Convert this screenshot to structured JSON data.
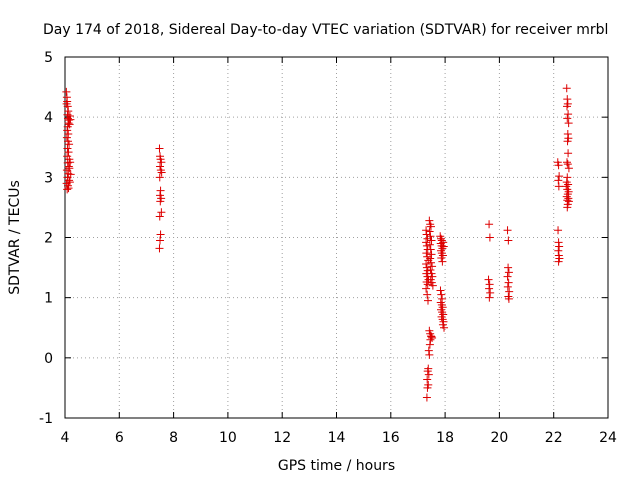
{
  "chart_data": {
    "type": "scatter",
    "title": "Day 174 of 2018, Sidereal Day-to-day VTEC variation (SDTVAR) for receiver mrbl",
    "xlabel": "GPS time / hours",
    "ylabel": "SDTVAR / TECUs",
    "xlim": [
      4,
      24
    ],
    "ylim": [
      -1,
      5
    ],
    "xticks": [
      4,
      6,
      8,
      10,
      12,
      14,
      16,
      18,
      20,
      22,
      24
    ],
    "yticks": [
      -1,
      0,
      1,
      2,
      3,
      4,
      5
    ],
    "grid": true,
    "marker": "+",
    "color": "#dd0000",
    "series": [
      {
        "name": "SDTVAR",
        "points": [
          [
            4.05,
            4.42
          ],
          [
            4.07,
            4.33
          ],
          [
            4.08,
            4.26
          ],
          [
            4.06,
            4.22
          ],
          [
            4.1,
            4.18
          ],
          [
            4.12,
            4.1
          ],
          [
            4.09,
            4.04
          ],
          [
            4.11,
            3.98
          ],
          [
            4.14,
            3.95
          ],
          [
            4.13,
            3.9
          ],
          [
            4.1,
            3.84
          ],
          [
            4.08,
            3.78
          ],
          [
            4.12,
            3.72
          ],
          [
            4.07,
            3.66
          ],
          [
            4.11,
            3.6
          ],
          [
            4.15,
            3.55
          ],
          [
            4.09,
            3.48
          ],
          [
            4.13,
            3.42
          ],
          [
            4.08,
            3.35
          ],
          [
            4.16,
            3.3
          ],
          [
            4.1,
            3.24
          ],
          [
            4.14,
            3.18
          ],
          [
            4.07,
            3.12
          ],
          [
            4.12,
            3.06
          ],
          [
            4.09,
            3.0
          ],
          [
            4.15,
            2.95
          ],
          [
            4.06,
            2.9
          ],
          [
            4.11,
            2.86
          ],
          [
            4.13,
            2.82
          ],
          [
            4.08,
            2.8
          ],
          [
            4.18,
            4.02
          ],
          [
            4.2,
            3.96
          ],
          [
            4.17,
            3.88
          ],
          [
            4.19,
            3.25
          ],
          [
            4.16,
            3.15
          ],
          [
            4.21,
            3.05
          ],
          [
            4.18,
            2.92
          ],
          [
            7.48,
            3.48
          ],
          [
            7.5,
            3.35
          ],
          [
            7.52,
            3.3
          ],
          [
            7.55,
            3.25
          ],
          [
            7.5,
            3.18
          ],
          [
            7.53,
            3.12
          ],
          [
            7.56,
            3.08
          ],
          [
            7.49,
            3.0
          ],
          [
            7.52,
            2.78
          ],
          [
            7.5,
            2.7
          ],
          [
            7.54,
            2.65
          ],
          [
            7.51,
            2.6
          ],
          [
            7.55,
            2.42
          ],
          [
            7.49,
            2.35
          ],
          [
            7.52,
            2.05
          ],
          [
            7.5,
            1.95
          ],
          [
            7.48,
            1.82
          ],
          [
            17.3,
            2.12
          ],
          [
            17.32,
            2.05
          ],
          [
            17.35,
            1.98
          ],
          [
            17.3,
            1.92
          ],
          [
            17.33,
            1.86
          ],
          [
            17.36,
            1.8
          ],
          [
            17.31,
            1.74
          ],
          [
            17.34,
            1.68
          ],
          [
            17.38,
            1.62
          ],
          [
            17.3,
            1.56
          ],
          [
            17.33,
            1.5
          ],
          [
            17.36,
            1.45
          ],
          [
            17.31,
            1.4
          ],
          [
            17.35,
            1.35
          ],
          [
            17.39,
            1.3
          ],
          [
            17.32,
            1.26
          ],
          [
            17.36,
            1.22
          ],
          [
            17.3,
            1.15
          ],
          [
            17.34,
            1.05
          ],
          [
            17.37,
            0.95
          ],
          [
            17.42,
            2.28
          ],
          [
            17.45,
            2.22
          ],
          [
            17.48,
            2.18
          ],
          [
            17.43,
            2.1
          ],
          [
            17.46,
            2.02
          ],
          [
            17.5,
            1.95
          ],
          [
            17.44,
            1.88
          ],
          [
            17.47,
            1.8
          ],
          [
            17.5,
            1.72
          ],
          [
            17.45,
            1.65
          ],
          [
            17.48,
            1.58
          ],
          [
            17.52,
            1.52
          ],
          [
            17.46,
            1.46
          ],
          [
            17.5,
            1.4
          ],
          [
            17.53,
            1.35
          ],
          [
            17.47,
            1.3
          ],
          [
            17.51,
            1.25
          ],
          [
            17.55,
            1.2
          ],
          [
            17.42,
            0.45
          ],
          [
            17.45,
            0.4
          ],
          [
            17.48,
            0.36
          ],
          [
            17.52,
            0.33
          ],
          [
            17.46,
            0.3
          ],
          [
            17.5,
            0.35
          ],
          [
            17.44,
            0.22
          ],
          [
            17.4,
            0.12
          ],
          [
            17.42,
            0.05
          ],
          [
            17.38,
            -0.18
          ],
          [
            17.36,
            -0.22
          ],
          [
            17.4,
            -0.28
          ],
          [
            17.34,
            -0.36
          ],
          [
            17.38,
            -0.45
          ],
          [
            17.35,
            -0.5
          ],
          [
            17.33,
            -0.66
          ],
          [
            17.82,
            2.02
          ],
          [
            17.85,
            1.98
          ],
          [
            17.88,
            1.95
          ],
          [
            17.84,
            1.9
          ],
          [
            17.87,
            1.86
          ],
          [
            17.9,
            1.82
          ],
          [
            17.85,
            1.78
          ],
          [
            17.88,
            1.74
          ],
          [
            17.92,
            1.7
          ],
          [
            17.86,
            1.66
          ],
          [
            17.9,
            1.6
          ],
          [
            17.93,
            1.92
          ],
          [
            17.95,
            1.85
          ],
          [
            17.83,
            1.12
          ],
          [
            17.86,
            1.05
          ],
          [
            17.89,
            0.98
          ],
          [
            17.84,
            0.92
          ],
          [
            17.88,
            0.88
          ],
          [
            17.91,
            0.84
          ],
          [
            17.85,
            0.8
          ],
          [
            17.89,
            0.76
          ],
          [
            17.93,
            0.72
          ],
          [
            17.87,
            0.68
          ],
          [
            17.91,
            0.64
          ],
          [
            17.94,
            0.6
          ],
          [
            17.96,
            0.5
          ],
          [
            17.92,
            0.55
          ],
          [
            19.62,
            2.22
          ],
          [
            19.65,
            2.0
          ],
          [
            19.6,
            1.3
          ],
          [
            19.64,
            1.22
          ],
          [
            19.62,
            1.15
          ],
          [
            19.66,
            1.08
          ],
          [
            19.63,
            1.0
          ],
          [
            20.3,
            2.12
          ],
          [
            20.33,
            1.95
          ],
          [
            20.32,
            1.5
          ],
          [
            20.35,
            1.42
          ],
          [
            20.3,
            1.35
          ],
          [
            20.34,
            1.25
          ],
          [
            20.31,
            1.18
          ],
          [
            20.36,
            1.1
          ],
          [
            20.33,
            1.02
          ],
          [
            20.35,
            0.98
          ],
          [
            22.15,
            3.25
          ],
          [
            22.18,
            3.2
          ],
          [
            22.2,
            3.02
          ],
          [
            22.17,
            2.95
          ],
          [
            22.19,
            2.85
          ],
          [
            22.16,
            2.12
          ],
          [
            22.18,
            1.92
          ],
          [
            22.2,
            1.85
          ],
          [
            22.17,
            1.78
          ],
          [
            22.19,
            1.7
          ],
          [
            22.21,
            1.65
          ],
          [
            22.18,
            1.6
          ],
          [
            22.48,
            4.48
          ],
          [
            22.5,
            4.3
          ],
          [
            22.52,
            4.22
          ],
          [
            22.49,
            4.18
          ],
          [
            22.53,
            4.05
          ],
          [
            22.5,
            3.98
          ],
          [
            22.55,
            3.9
          ],
          [
            22.52,
            3.72
          ],
          [
            22.54,
            3.65
          ],
          [
            22.51,
            3.6
          ],
          [
            22.53,
            3.4
          ],
          [
            22.49,
            3.25
          ],
          [
            22.52,
            3.22
          ],
          [
            22.56,
            3.15
          ],
          [
            22.5,
            3.0
          ],
          [
            22.48,
            2.92
          ],
          [
            22.53,
            2.88
          ],
          [
            22.46,
            2.85
          ],
          [
            22.5,
            2.8
          ],
          [
            22.55,
            2.76
          ],
          [
            22.52,
            2.72
          ],
          [
            22.48,
            2.68
          ],
          [
            22.54,
            2.65
          ],
          [
            22.5,
            2.62
          ],
          [
            22.56,
            2.6
          ],
          [
            22.52,
            2.55
          ],
          [
            22.5,
            2.5
          ]
        ]
      }
    ]
  }
}
